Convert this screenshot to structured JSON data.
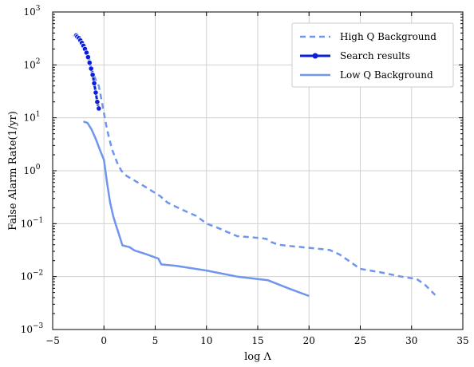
{
  "chart_data": {
    "type": "line",
    "xlabel": "log Λ",
    "ylabel": "False Alarm Rate(1/yr)",
    "xlim": [
      -5,
      35
    ],
    "ylim": [
      0.001,
      1000
    ],
    "yscale": "log",
    "grid": true,
    "legend_position": "top-right",
    "x_ticks": [
      -5,
      0,
      5,
      10,
      15,
      20,
      25,
      30,
      35
    ],
    "x_tick_labels": [
      "−5",
      "0",
      "5",
      "10",
      "15",
      "20",
      "25",
      "30",
      "35"
    ],
    "y_ticks": [
      0.001,
      0.01,
      0.1,
      1,
      10,
      100,
      1000
    ],
    "y_tick_labels": [
      {
        "base": "10",
        "exp": "−3"
      },
      {
        "base": "10",
        "exp": "−2"
      },
      {
        "base": "10",
        "exp": "−1"
      },
      {
        "base": "10",
        "exp": "0"
      },
      {
        "base": "10",
        "exp": "1"
      },
      {
        "base": "10",
        "exp": "2"
      },
      {
        "base": "10",
        "exp": "3"
      }
    ],
    "series": [
      {
        "name": "High Q Background",
        "style": "dashed",
        "color": "#6f95ee",
        "x": [
          -3.0,
          -2.8,
          -2.3,
          -2.0,
          -1.7,
          -1.4,
          -1.1,
          -0.8,
          -0.5,
          -0.2,
          0.3,
          0.8,
          1.3,
          1.7,
          2.2,
          3.0,
          4.0,
          5.0,
          5.5,
          6.2,
          7.0,
          8.0,
          9.0,
          10.0,
          11.0,
          12.0,
          13.0,
          14.0,
          15.0,
          15.8,
          16.3,
          17.0,
          18.0,
          20.0,
          22.0,
          23.0,
          25.0,
          27.0,
          29.0,
          30.5,
          31.3,
          32.3
        ],
        "y": [
          360,
          350,
          320,
          240,
          180,
          120,
          75,
          52,
          40,
          20,
          6.0,
          2.5,
          1.4,
          1.0,
          0.8,
          0.65,
          0.5,
          0.38,
          0.33,
          0.25,
          0.21,
          0.17,
          0.14,
          0.1,
          0.085,
          0.07,
          0.058,
          0.056,
          0.054,
          0.052,
          0.045,
          0.04,
          0.038,
          0.035,
          0.032,
          0.026,
          0.014,
          0.012,
          0.01,
          0.009,
          0.007,
          0.0045
        ]
      },
      {
        "name": "Search results",
        "style": "solid-markers",
        "color": "#0a1fd6",
        "x": [
          -2.7,
          -2.6,
          -2.45,
          -2.3,
          -2.15,
          -2.0,
          -1.85,
          -1.7,
          -1.55,
          -1.4,
          -1.25,
          -1.1,
          -0.95,
          -0.8,
          -0.65,
          -0.5
        ],
        "y": [
          360,
          340,
          320,
          290,
          260,
          230,
          200,
          170,
          140,
          110,
          85,
          65,
          45,
          30,
          20,
          15
        ]
      },
      {
        "name": "Low Q Background",
        "style": "solid",
        "color": "#6f95ee",
        "x": [
          -2.0,
          -1.6,
          -1.2,
          -0.8,
          -0.4,
          0.0,
          0.3,
          0.6,
          0.9,
          1.2,
          1.5,
          1.8,
          2.5,
          3.0,
          4.0,
          5.0,
          5.3,
          5.6,
          7.0,
          10.0,
          13.0,
          16.0,
          18.0,
          20.0
        ],
        "y": [
          8.5,
          8.0,
          6.0,
          4.0,
          2.5,
          1.6,
          0.6,
          0.25,
          0.14,
          0.09,
          0.06,
          0.039,
          0.036,
          0.031,
          0.027,
          0.023,
          0.022,
          0.017,
          0.016,
          0.013,
          0.01,
          0.0085,
          0.006,
          0.0043
        ]
      }
    ]
  }
}
